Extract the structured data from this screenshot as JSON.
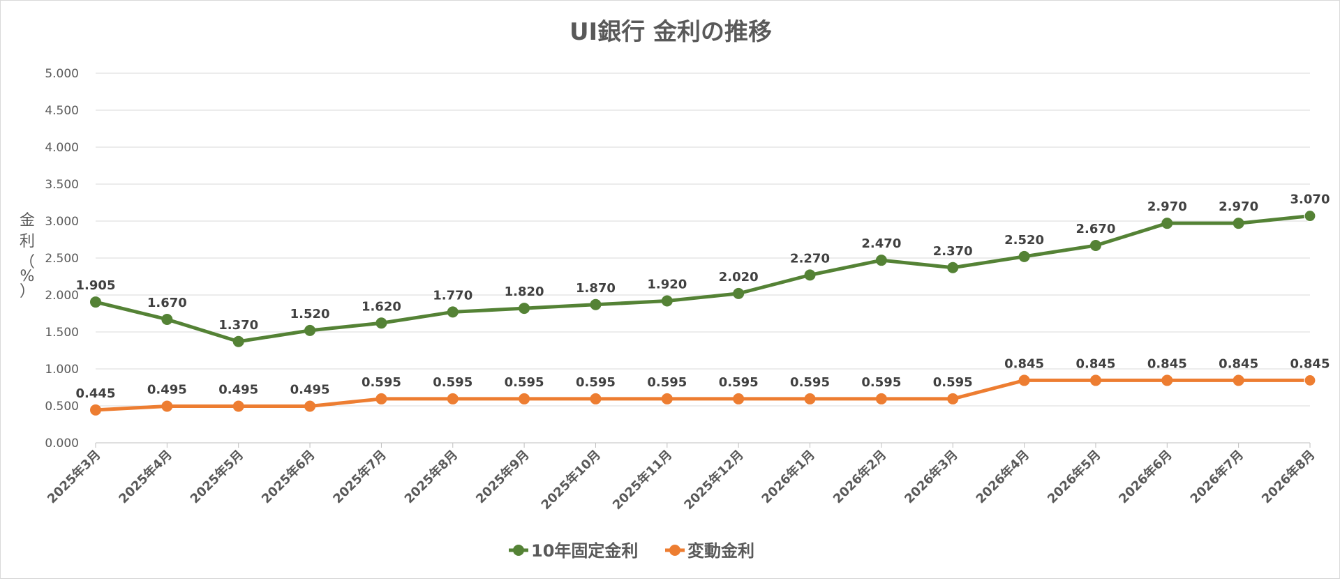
{
  "chart_data": {
    "type": "line",
    "title": "UI銀行 金利の推移",
    "ylabel": [
      "金",
      "利",
      "（",
      "%",
      "）"
    ],
    "ylim": [
      0,
      5
    ],
    "y_ticks": [
      "0.000",
      "0.500",
      "1.000",
      "1.500",
      "2.000",
      "2.500",
      "3.000",
      "3.500",
      "4.000",
      "4.500",
      "5.000"
    ],
    "y_tick_values": [
      0,
      0.5,
      1,
      1.5,
      2,
      2.5,
      3,
      3.5,
      4,
      4.5,
      5
    ],
    "grid": true,
    "legend_position": "bottom",
    "categories": [
      "2025年3月",
      "2025年4月",
      "2025年5月",
      "2025年6月",
      "2025年7月",
      "2025年8月",
      "2025年9月",
      "2025年10月",
      "2025年11月",
      "2025年12月",
      "2026年1月",
      "2026年2月",
      "2026年3月",
      "2026年4月",
      "2026年5月",
      "2026年6月",
      "2026年7月",
      "2026年8月"
    ],
    "series": [
      {
        "name": "10年固定金利",
        "color": "#548235",
        "values": [
          1.905,
          1.67,
          1.37,
          1.52,
          1.62,
          1.77,
          1.82,
          1.87,
          1.92,
          2.02,
          2.27,
          2.47,
          2.37,
          2.52,
          2.67,
          2.97,
          2.97,
          3.07
        ],
        "labels": [
          "1.905",
          "1.670",
          "1.370",
          "1.520",
          "1.620",
          "1.770",
          "1.820",
          "1.870",
          "1.920",
          "2.020",
          "2.270",
          "2.470",
          "2.370",
          "2.520",
          "2.670",
          "2.970",
          "2.970",
          "3.070"
        ]
      },
      {
        "name": "変動金利",
        "color": "#ED7D31",
        "values": [
          0.445,
          0.495,
          0.495,
          0.495,
          0.595,
          0.595,
          0.595,
          0.595,
          0.595,
          0.595,
          0.595,
          0.595,
          0.595,
          0.845,
          0.845,
          0.845,
          0.845,
          0.845
        ],
        "labels": [
          "0.445",
          "0.495",
          "0.495",
          "0.495",
          "0.595",
          "0.595",
          "0.595",
          "0.595",
          "0.595",
          "0.595",
          "0.595",
          "0.595",
          "0.595",
          "0.845",
          "0.845",
          "0.845",
          "0.845",
          "0.845"
        ]
      }
    ]
  }
}
